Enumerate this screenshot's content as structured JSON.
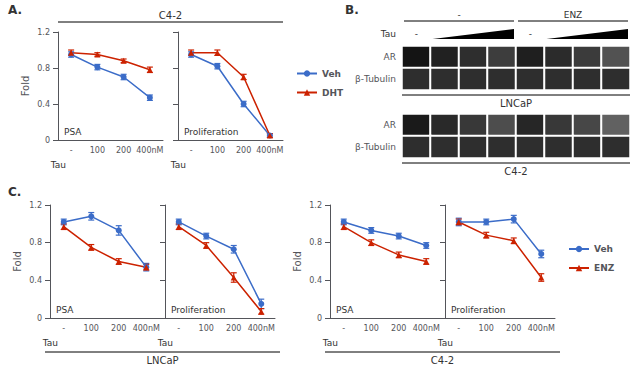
{
  "chart_data": [
    {
      "type": "line",
      "panel": "A.",
      "group": "C4-2",
      "annotation": "PSA",
      "xlabel": "Tau",
      "ylabel": "Fold",
      "categories": [
        "-",
        "100",
        "200",
        "400nM"
      ],
      "ylim": [
        0,
        1.2
      ],
      "yticks": [
        0,
        0.4,
        0.8,
        1.2
      ],
      "grid": false,
      "series": [
        {
          "name": "Veh",
          "color": "#3B6CC8",
          "marker": "circle",
          "values": [
            0.95,
            0.81,
            0.7,
            0.47
          ],
          "errors": [
            0.03,
            0.03,
            0.03,
            0.03
          ]
        },
        {
          "name": "DHT",
          "color": "#CC2200",
          "marker": "triangle",
          "values": [
            0.97,
            0.95,
            0.88,
            0.78
          ],
          "errors": [
            0.03,
            0.02,
            0.02,
            0.03
          ]
        }
      ]
    },
    {
      "type": "line",
      "annotation": "Proliferation",
      "xlabel": "Tau",
      "tick_labels": "x",
      "legend": "right",
      "categories": [
        "-",
        "100",
        "200",
        "400nM"
      ],
      "ylim": [
        0,
        1.2
      ],
      "yticks": [
        0,
        0.4,
        0.8,
        1.2
      ],
      "grid": false,
      "series": [
        {
          "name": "Veh",
          "color": "#3B6CC8",
          "marker": "circle",
          "values": [
            0.95,
            0.82,
            0.4,
            0.05
          ],
          "errors": [
            0.03,
            0.03,
            0.03,
            0.02
          ]
        },
        {
          "name": "DHT",
          "color": "#CC2200",
          "marker": "triangle",
          "values": [
            0.97,
            0.97,
            0.7,
            0.05
          ],
          "errors": [
            0.03,
            0.03,
            0.03,
            0.02
          ]
        }
      ]
    },
    {
      "type": "heatmap",
      "panel": "B.",
      "group": "LNCaP",
      "column_groups": [
        "-",
        "ENZ"
      ],
      "dose_label": "Tau",
      "dose_marks": [
        "-",
        "-"
      ],
      "rows": [
        "AR",
        "β-Tubulin"
      ],
      "values": [
        [
          0.08,
          0.13,
          0.18,
          0.24,
          0.12,
          0.17,
          0.23,
          0.32
        ],
        [
          0.18,
          0.18,
          0.18,
          0.18,
          0.18,
          0.18,
          0.18,
          0.18
        ]
      ],
      "zlim": [
        0,
        1
      ]
    },
    {
      "type": "heatmap",
      "group": "C4-2",
      "rows": [
        "AR",
        "β-Tubulin"
      ],
      "values": [
        [
          0.1,
          0.16,
          0.22,
          0.3,
          0.15,
          0.22,
          0.28,
          0.38
        ],
        [
          0.18,
          0.18,
          0.18,
          0.18,
          0.18,
          0.18,
          0.18,
          0.18
        ]
      ],
      "zlim": [
        0,
        1
      ]
    },
    {
      "type": "line",
      "panel": "C.",
      "group": "LNCaP",
      "annotation": "PSA",
      "xlabel": "Tau",
      "ylabel": "Fold",
      "categories": [
        "-",
        "100",
        "200",
        "400nM"
      ],
      "ylim": [
        0,
        1.2
      ],
      "yticks": [
        0,
        0.4,
        0.8,
        1.2
      ],
      "grid": false,
      "series": [
        {
          "name": "Veh",
          "color": "#3B6CC8",
          "marker": "circle",
          "values": [
            1.02,
            1.08,
            0.93,
            0.54
          ],
          "errors": [
            0.03,
            0.04,
            0.05,
            0.04
          ]
        },
        {
          "name": "ENZ",
          "color": "#CC2200",
          "marker": "triangle",
          "values": [
            0.97,
            0.75,
            0.6,
            0.54
          ],
          "errors": [
            0.03,
            0.03,
            0.03,
            0.03
          ]
        }
      ]
    },
    {
      "type": "line",
      "annotation": "Proliferation",
      "xlabel": "Tau",
      "tick_labels": "x",
      "categories": [
        "-",
        "100",
        "200",
        "400nM"
      ],
      "ylim": [
        0,
        1.2
      ],
      "yticks": [
        0,
        0.4,
        0.8,
        1.2
      ],
      "grid": false,
      "series": [
        {
          "name": "Veh",
          "color": "#3B6CC8",
          "marker": "circle",
          "values": [
            1.02,
            0.87,
            0.73,
            0.15
          ],
          "errors": [
            0.03,
            0.03,
            0.04,
            0.05
          ]
        },
        {
          "name": "ENZ",
          "color": "#CC2200",
          "marker": "triangle",
          "values": [
            0.97,
            0.77,
            0.43,
            0.07
          ],
          "errors": [
            0.03,
            0.03,
            0.05,
            0.03
          ]
        }
      ]
    },
    {
      "type": "line",
      "group": "C4-2",
      "annotation": "PSA",
      "xlabel": "Tau",
      "ylabel": "Fold",
      "categories": [
        "-",
        "100",
        "200",
        "400nM"
      ],
      "ylim": [
        0,
        1.2
      ],
      "yticks": [
        0,
        0.4,
        0.8,
        1.2
      ],
      "grid": false,
      "series": [
        {
          "name": "Veh",
          "color": "#3B6CC8",
          "marker": "circle",
          "values": [
            1.02,
            0.93,
            0.87,
            0.77
          ],
          "errors": [
            0.03,
            0.03,
            0.03,
            0.03
          ]
        },
        {
          "name": "ENZ",
          "color": "#CC2200",
          "marker": "triangle",
          "values": [
            0.97,
            0.8,
            0.67,
            0.6
          ],
          "errors": [
            0.03,
            0.03,
            0.03,
            0.03
          ]
        }
      ]
    },
    {
      "type": "line",
      "annotation": "Proliferation",
      "xlabel": "Tau",
      "tick_labels": "x",
      "legend": "right",
      "categories": [
        "-",
        "100",
        "200",
        "400nM"
      ],
      "ylim": [
        0,
        1.2
      ],
      "yticks": [
        0,
        0.4,
        0.8,
        1.2
      ],
      "grid": false,
      "series": [
        {
          "name": "Veh",
          "color": "#3B6CC8",
          "marker": "circle",
          "values": [
            1.02,
            1.02,
            1.05,
            0.68
          ],
          "errors": [
            0.04,
            0.03,
            0.04,
            0.04
          ]
        },
        {
          "name": "ENZ",
          "color": "#CC2200",
          "marker": "triangle",
          "values": [
            1.02,
            0.88,
            0.82,
            0.43
          ],
          "errors": [
            0.03,
            0.03,
            0.03,
            0.04
          ]
        }
      ]
    }
  ]
}
